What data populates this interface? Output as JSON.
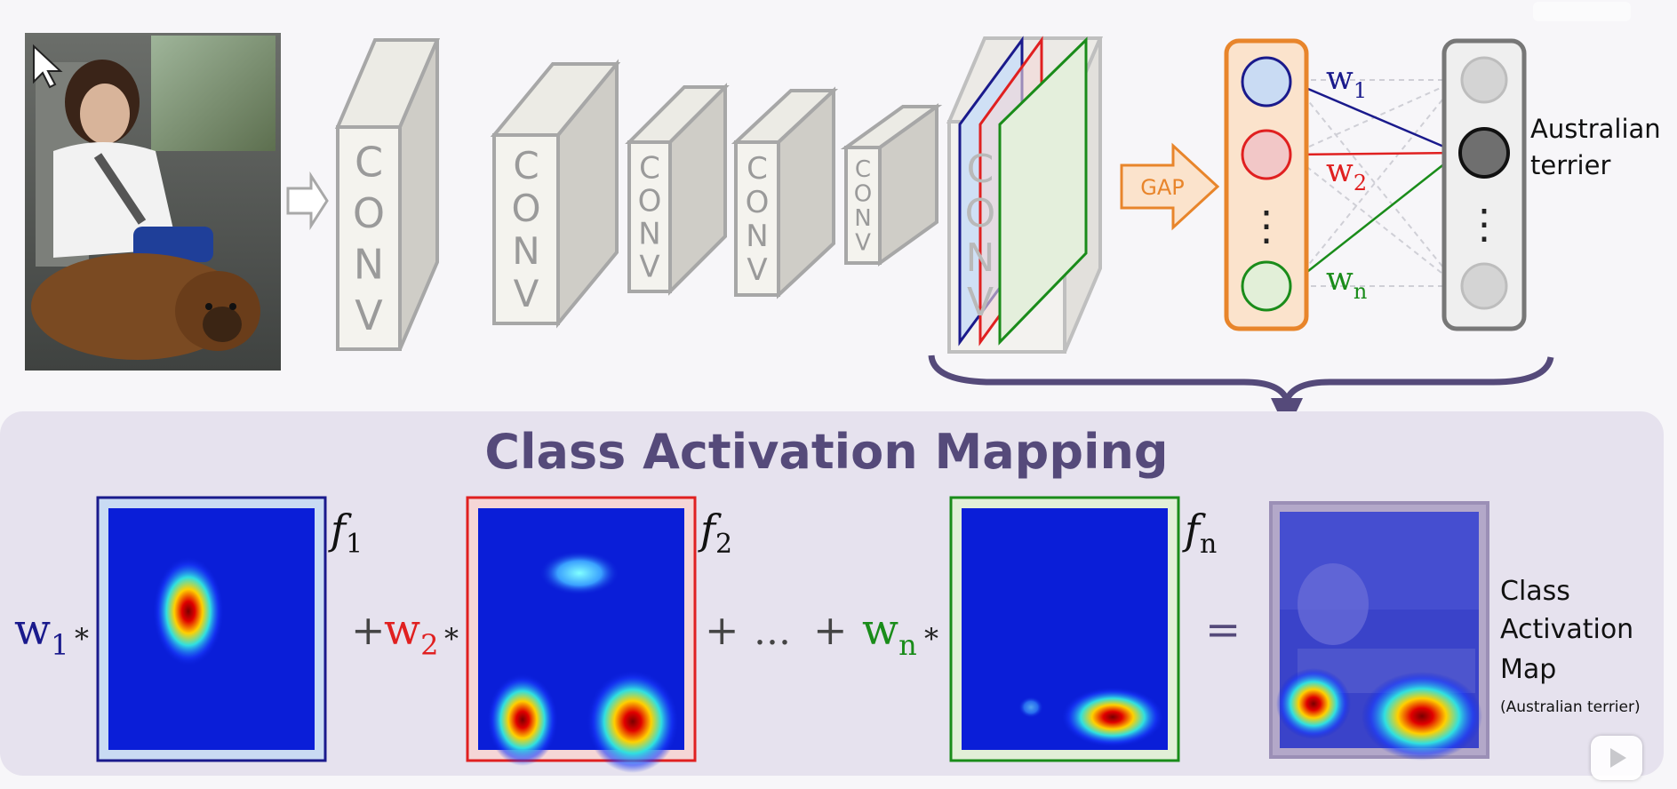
{
  "network": {
    "conv_label": "CONV",
    "gap_label": "GAP",
    "weights": [
      "w",
      "w",
      "w"
    ],
    "weight_subscripts": [
      "1",
      "2",
      "n"
    ],
    "ellipsis": "⋮",
    "output_label_line1": "Australian",
    "output_label_line2": "terrier"
  },
  "cam": {
    "title": "Class Activation Mapping",
    "terms": [
      {
        "weight": "w",
        "sub": "1",
        "feature": "f",
        "feature_sub": "1",
        "color": "#1a1a8c"
      },
      {
        "weight": "w",
        "sub": "2",
        "feature": "f",
        "feature_sub": "2",
        "color": "#e02020"
      },
      {
        "weight": "w",
        "sub": "n",
        "feature": "f",
        "feature_sub": "n",
        "color": "#1a8c1a"
      }
    ],
    "multiply": "*",
    "plus": "+",
    "dots": "…",
    "equals": "=",
    "result_line1": "Class",
    "result_line2": "Activation",
    "result_line3": "Map",
    "result_note": "(Australian terrier)"
  },
  "colors": {
    "blue": "#1a1a8c",
    "red": "#e02020",
    "green": "#1a8c1a",
    "orange": "#e8852b",
    "purple": "#554a7a",
    "panel": "#e6e2ee"
  },
  "icons": {
    "cursor": "cursor-icon",
    "play": "play-icon"
  }
}
